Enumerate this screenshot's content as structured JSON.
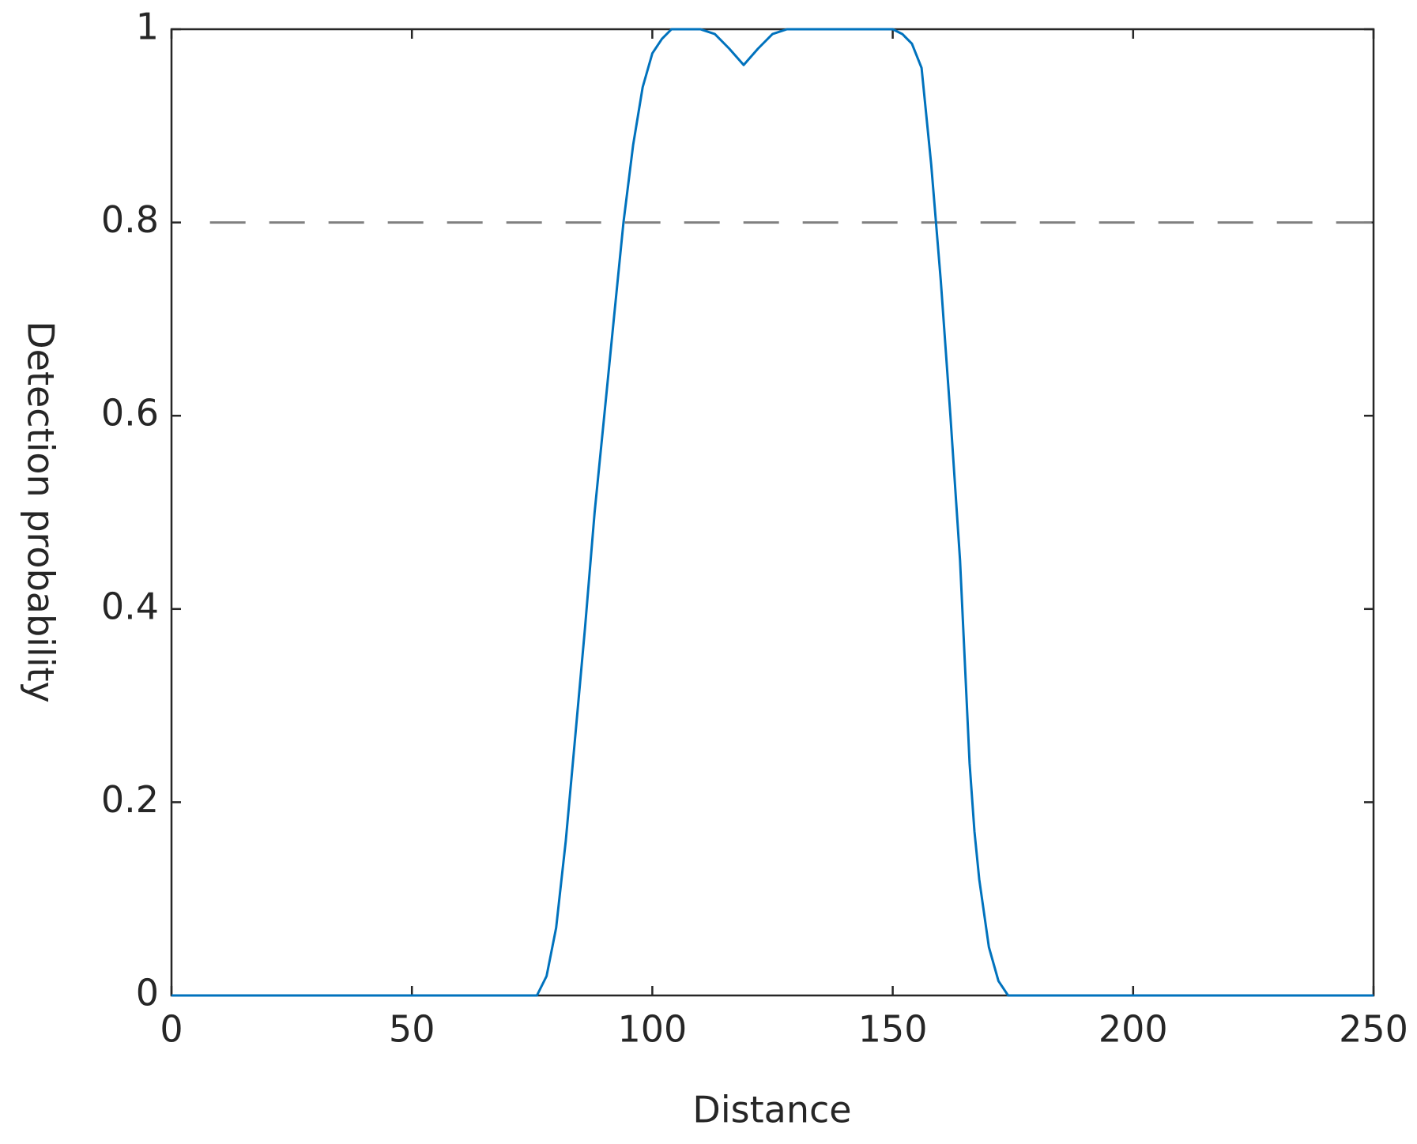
{
  "chart_data": {
    "type": "line",
    "x_label": "Distance",
    "y_label": "Detection probability",
    "x": [
      0,
      76,
      78,
      80,
      82,
      84,
      86,
      88,
      90,
      92,
      94,
      96,
      98,
      100,
      102,
      104,
      110,
      113,
      116,
      119,
      122,
      125,
      128,
      150,
      152,
      154,
      156,
      158,
      160,
      162,
      164,
      166,
      167,
      168,
      170,
      172,
      174,
      250
    ],
    "values": [
      0,
      0,
      0.02,
      0.07,
      0.16,
      0.27,
      0.38,
      0.5,
      0.6,
      0.7,
      0.8,
      0.88,
      0.94,
      0.975,
      0.99,
      1,
      1,
      0.995,
      0.98,
      0.963,
      0.98,
      0.995,
      1,
      1,
      0.995,
      0.985,
      0.96,
      0.86,
      0.74,
      0.6,
      0.45,
      0.24,
      0.17,
      0.12,
      0.05,
      0.015,
      0,
      0
    ],
    "color": "#0072bd",
    "hlines": [
      {
        "y": 0.8,
        "x": [
          8,
          250
        ],
        "color": "#808080",
        "dash": true
      }
    ],
    "xlim": [
      0,
      250
    ],
    "xticks": [
      0,
      50,
      100,
      150,
      200,
      250
    ],
    "ylim": [
      0,
      1
    ],
    "yticks": [
      0,
      0.2,
      0.4,
      0.6,
      0.8,
      1
    ],
    "grid": false
  }
}
